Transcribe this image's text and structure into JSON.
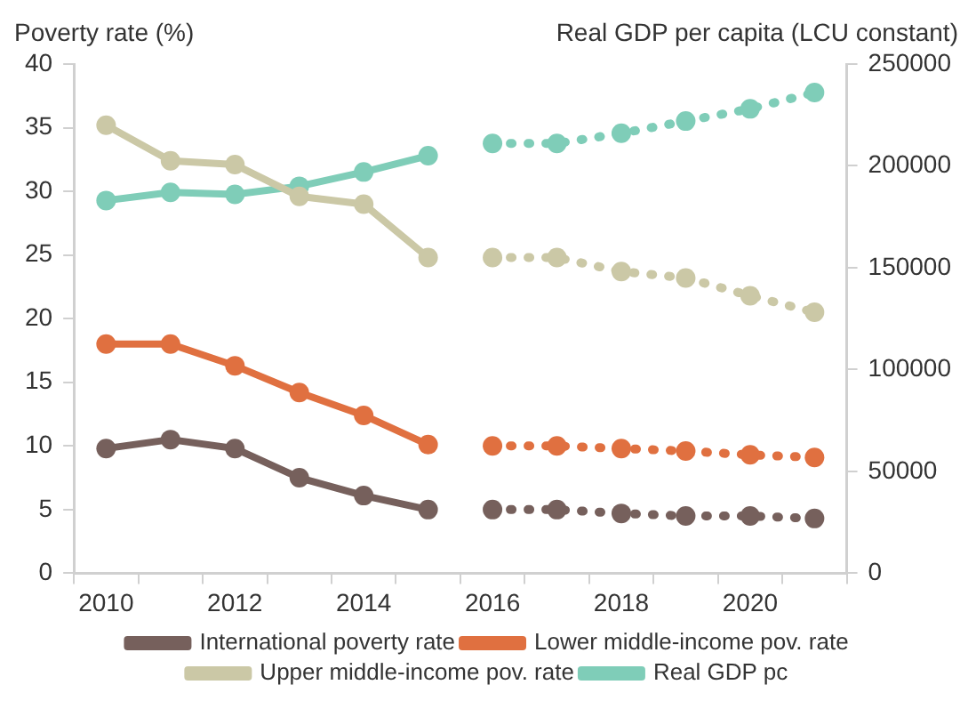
{
  "chart_data": {
    "type": "line",
    "ylabel": "Poverty rate (%)",
    "y2label": "Real GDP per capita (LCU constant)",
    "categories": [
      "2010",
      null,
      "2012",
      null,
      "2014",
      null,
      "2016",
      null,
      "2018",
      null,
      "2020",
      null
    ],
    "series": [
      {
        "name": "International poverty rate",
        "color": "#76605c",
        "line_style": "solid",
        "values": [
          9.8,
          10.5,
          9.8,
          7.5,
          6.1,
          5.0,
          null,
          null,
          null,
          null,
          null,
          null
        ]
      },
      {
        "name": "Lower middle-income pov. rate",
        "color": "#e07040",
        "line_style": "solid",
        "values": [
          18.0,
          18.0,
          16.3,
          14.2,
          12.4,
          10.1,
          null,
          null,
          null,
          null,
          null,
          null
        ]
      },
      {
        "name": "Upper middle-income pov. rate",
        "color": "#cbc8a6",
        "line_style": "solid",
        "values": [
          35.2,
          32.4,
          32.1,
          29.6,
          29.0,
          24.8,
          null,
          null,
          null,
          null,
          null,
          null
        ]
      },
      {
        "name": "Real GDP pc",
        "color": "#7fcdb8",
        "line_style": "solid",
        "axis": "y2",
        "values": [
          183000,
          187000,
          186000,
          190000,
          197000,
          205000,
          null,
          null,
          null,
          null,
          null,
          null
        ]
      },
      {
        "color": "#76605c",
        "line_style": "dotted",
        "values": [
          null,
          null,
          null,
          null,
          null,
          null,
          5.0,
          5.0,
          4.7,
          4.5,
          4.5,
          4.3
        ]
      },
      {
        "color": "#e07040",
        "line_style": "dotted",
        "values": [
          null,
          null,
          null,
          null,
          null,
          null,
          10.0,
          10.0,
          9.8,
          9.6,
          9.3,
          9.1
        ]
      },
      {
        "color": "#cbc8a6",
        "line_style": "dotted",
        "values": [
          null,
          null,
          null,
          null,
          null,
          null,
          24.8,
          24.8,
          23.7,
          23.2,
          21.8,
          20.5
        ]
      },
      {
        "color": "#7fcdb8",
        "line_style": "dotted",
        "axis": "y2",
        "values": [
          null,
          null,
          null,
          null,
          null,
          null,
          211000,
          211000,
          216000,
          222000,
          228000,
          236000
        ]
      }
    ],
    "ylim": [
      0,
      40
    ],
    "yticks": [
      0,
      5,
      10,
      15,
      20,
      25,
      30,
      35,
      40
    ],
    "y2lim": [
      0,
      250000
    ],
    "y2ticks": [
      0,
      50000,
      100000,
      150000,
      200000,
      250000
    ],
    "grid": false,
    "legend": "bottom",
    "marker": "circle"
  }
}
